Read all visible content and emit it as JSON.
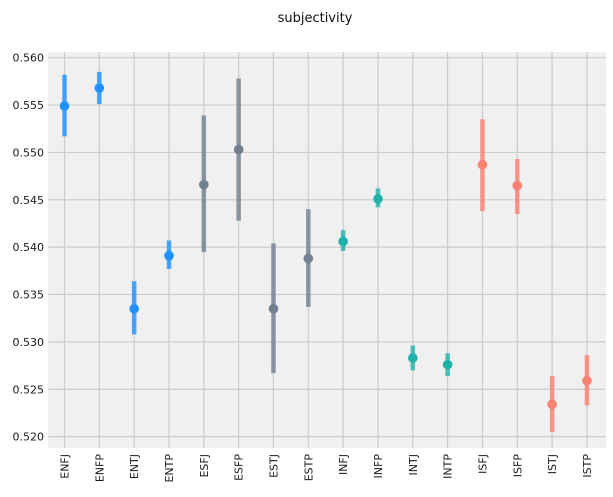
{
  "chart_data": {
    "type": "scatter",
    "title": "subjectivity",
    "xlabel": "",
    "ylabel": "",
    "categories": [
      "ENFJ",
      "ENFP",
      "ENTJ",
      "ENTP",
      "ESFJ",
      "ESFP",
      "ESTJ",
      "ESTP",
      "INFJ",
      "INFP",
      "INTJ",
      "INTP",
      "ISFJ",
      "ISFP",
      "ISTJ",
      "ISTP"
    ],
    "values": [
      0.5549,
      0.5568,
      0.5335,
      0.5391,
      0.5466,
      0.5503,
      0.5335,
      0.5388,
      0.5406,
      0.5451,
      0.5283,
      0.5276,
      0.5487,
      0.5465,
      0.5234,
      0.5259
    ],
    "error_low": [
      0.5517,
      0.5551,
      0.5308,
      0.5377,
      0.5395,
      0.5428,
      0.5267,
      0.5337,
      0.5396,
      0.5442,
      0.527,
      0.5264,
      0.5438,
      0.5435,
      0.5205,
      0.5233
    ],
    "error_high": [
      0.5582,
      0.5585,
      0.5364,
      0.5407,
      0.5539,
      0.5578,
      0.5404,
      0.544,
      0.5418,
      0.5462,
      0.5296,
      0.5288,
      0.5535,
      0.5493,
      0.5264,
      0.5286
    ],
    "colors": [
      "#1e90ff",
      "#1e90ff",
      "#1e90ff",
      "#1e90ff",
      "#708090",
      "#708090",
      "#708090",
      "#708090",
      "#20b2aa",
      "#20b2aa",
      "#20b2aa",
      "#20b2aa",
      "#fa8072",
      "#fa8072",
      "#fa8072",
      "#fa8072"
    ],
    "ylim": [
      0.5188,
      0.5606
    ],
    "yticks": [
      0.52,
      0.525,
      0.53,
      0.535,
      0.54,
      0.545,
      0.55,
      0.555,
      0.56
    ],
    "ytick_labels": [
      "0.520",
      "0.525",
      "0.530",
      "0.535",
      "0.540",
      "0.545",
      "0.550",
      "0.555",
      "0.560"
    ],
    "grid": true,
    "background": "#f0f0f0",
    "grid_color": "#cbcbcb"
  }
}
